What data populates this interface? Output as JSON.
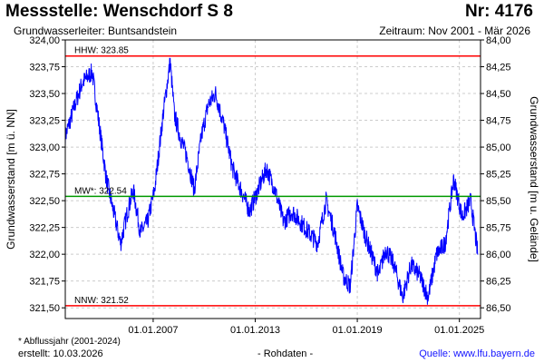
{
  "header": {
    "title": "Messstelle: Wenschdorf S 8",
    "number": "Nr: 4176",
    "aquifer": "Grundwasserleiter: Buntsandstein",
    "period": "Zeitraum: Nov 2001 - Mär 2026"
  },
  "footer": {
    "note": "* Abflussjahr (2001-2024)",
    "created": "erstellt:  10.03.2026",
    "rawdata": "- Rohdaten -",
    "source": "Quelle: www.lfu.bayern.de"
  },
  "colors": {
    "series": "#0000ff",
    "hhw_nnw": "#ff0000",
    "mw": "#009900",
    "grid": "#cccccc"
  },
  "chart_data": {
    "type": "line",
    "xlabel": "",
    "ylabel": "Grundwasserstand [m ü. NN]",
    "ylabel_right": "Grundwasserstand [m u. Gelände]",
    "xlim": [
      "2001-11-01",
      "2026-03-31"
    ],
    "ylim": [
      321.4,
      324.0
    ],
    "ylim_right": [
      86.6,
      84.0
    ],
    "x_ticks": [
      "01.01.2007",
      "01.01.2013",
      "01.01.2019",
      "01.01.2025"
    ],
    "y_ticks": [
      "324,00",
      "323,75",
      "323,50",
      "323,25",
      "323,00",
      "322,75",
      "322,50",
      "322,25",
      "322,00",
      "321,75",
      "321,50"
    ],
    "y_ticks_right": [
      "84,00",
      "84,25",
      "84,50",
      "84,75",
      "85,00",
      "85,25",
      "85,50",
      "85,75",
      "86,00",
      "86,25",
      "86,50"
    ],
    "grid": true,
    "reference_lines": [
      {
        "label": "HHW: 323.85",
        "value": 323.85
      },
      {
        "label": "MW*: 322.54",
        "value": 322.54
      },
      {
        "label": "NNW: 321.52",
        "value": 321.52
      }
    ],
    "series": [
      {
        "x": [
          "2001-11",
          "2002-06",
          "2002-11",
          "2003-06",
          "2003-11",
          "2004-04",
          "2004-09",
          "2005-02",
          "2005-07",
          "2005-11",
          "2006-04",
          "2006-09",
          "2007-02",
          "2007-08",
          "2008-01",
          "2008-04",
          "2008-08",
          "2009-01",
          "2009-06",
          "2009-11",
          "2010-04",
          "2010-09",
          "2011-03",
          "2011-09",
          "2012-03",
          "2012-09",
          "2013-03",
          "2013-09",
          "2014-03",
          "2014-09",
          "2015-03",
          "2015-09",
          "2016-03",
          "2016-09",
          "2017-03",
          "2017-09",
          "2018-03",
          "2018-08",
          "2019-01",
          "2019-06",
          "2019-11",
          "2020-04",
          "2020-09",
          "2021-03",
          "2021-09",
          "2022-03",
          "2022-09",
          "2023-03",
          "2023-09",
          "2024-03",
          "2024-09",
          "2025-03",
          "2025-09",
          "2026-02"
        ],
        "y": [
          323.1,
          323.4,
          323.6,
          323.7,
          323.2,
          322.7,
          322.4,
          322.1,
          322.4,
          322.6,
          322.2,
          322.3,
          322.6,
          323.3,
          323.8,
          323.3,
          323.1,
          322.9,
          322.6,
          323.1,
          323.4,
          323.5,
          323.2,
          322.8,
          322.6,
          322.4,
          322.6,
          322.8,
          322.6,
          322.3,
          322.4,
          322.3,
          322.2,
          322.1,
          322.5,
          322.2,
          321.8,
          321.7,
          322.45,
          322.2,
          322.0,
          321.8,
          322.05,
          321.9,
          321.6,
          321.9,
          321.8,
          321.6,
          322.0,
          322.1,
          322.7,
          322.35,
          322.5,
          322.0
        ]
      }
    ]
  }
}
